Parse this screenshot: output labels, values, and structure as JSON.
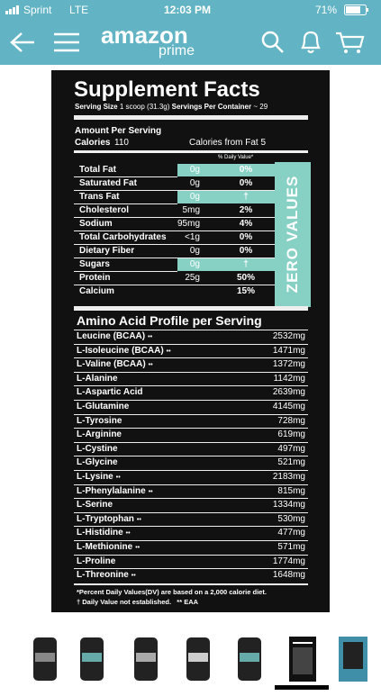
{
  "status": {
    "carrier": "Sprint",
    "network": "LTE",
    "time": "12:03 PM",
    "battery": "71%"
  },
  "header": {
    "logo": "amazon",
    "prime": "prime"
  },
  "label": {
    "title": "Supplement Facts",
    "serving_size_label": "Serving Size",
    "serving_size": "1 scoop (31.3g)",
    "servings_label": "Servings Per Container",
    "servings": "~ 29",
    "amount_per_serving": "Amount Per Serving",
    "calories_label": "Calories",
    "calories": "110",
    "calories_fat": "Calories from Fat 5",
    "dv_header": "% Daily Value*",
    "zero_values": "ZERO VALUES",
    "nutrients": [
      {
        "name": "Total Fat",
        "amount": "0g",
        "dv": "0%",
        "highlight": true
      },
      {
        "name": "Saturated Fat",
        "amount": "0g",
        "dv": "0%"
      },
      {
        "name": "Trans Fat",
        "amount": "0g",
        "dv": "†",
        "highlight": true
      },
      {
        "name": "Cholesterol",
        "amount": "5mg",
        "dv": "2%"
      },
      {
        "name": "Sodium",
        "amount": "95mg",
        "dv": "4%"
      },
      {
        "name": "Total Carbohydrates",
        "amount": "<1g",
        "dv": "0%"
      },
      {
        "name": "Dietary Fiber",
        "amount": "0g",
        "dv": "0%"
      },
      {
        "name": "Sugars",
        "amount": "0g",
        "dv": "†",
        "highlight": true
      },
      {
        "name": "Protein",
        "amount": "25g",
        "dv": "50%"
      },
      {
        "name": "Calcium",
        "dv": "15%"
      }
    ],
    "amino_title": "Amino Acid Profile per Serving",
    "amino": [
      {
        "name": "Leucine (BCAA)",
        "mark": "••",
        "amount": "2532mg"
      },
      {
        "name": "L-Isoleucine (BCAA)",
        "mark": "••",
        "amount": "1471mg"
      },
      {
        "name": "L-Valine (BCAA)",
        "mark": "••",
        "amount": "1372mg"
      },
      {
        "name": "L-Alanine",
        "amount": "1142mg"
      },
      {
        "name": "L-Aspartic Acid",
        "amount": "2639mg"
      },
      {
        "name": "L-Glutamine",
        "amount": "4145mg"
      },
      {
        "name": "L-Tyrosine",
        "amount": "728mg"
      },
      {
        "name": "L-Arginine",
        "amount": "619mg"
      },
      {
        "name": "L-Cystine",
        "amount": "497mg"
      },
      {
        "name": "L-Glycine",
        "amount": "521mg"
      },
      {
        "name": "L-Lysine",
        "mark": "••",
        "amount": "2183mg"
      },
      {
        "name": "L-Phenylalanine",
        "mark": "••",
        "amount": "815mg"
      },
      {
        "name": "L-Serine",
        "amount": "1334mg"
      },
      {
        "name": "L-Tryptophan",
        "mark": "••",
        "amount": "530mg"
      },
      {
        "name": "L-Histidine",
        "mark": "••",
        "amount": "477mg"
      },
      {
        "name": "L-Methionine",
        "mark": "••",
        "amount": "571mg"
      },
      {
        "name": "L-Proline",
        "amount": "1774mg"
      },
      {
        "name": "L-Threonine",
        "mark": "••",
        "amount": "1648mg"
      }
    ],
    "footnote1": "*Percent Daily Values(DV) are based on a 2,000 calorie diet.",
    "footnote2": "† Daily Value not established.   ** EAA"
  }
}
